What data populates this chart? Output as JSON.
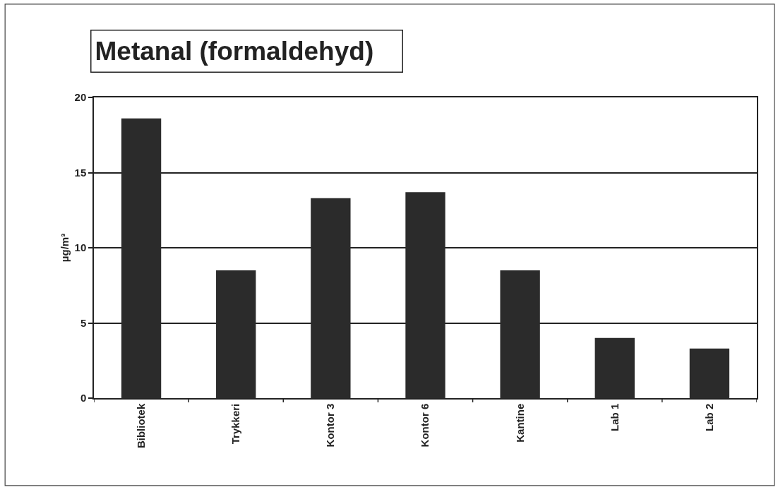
{
  "chart_data": {
    "type": "bar",
    "title": "Metanal (formaldehyd)",
    "ylabel": "µg/m³",
    "categories": [
      "Bibliotek",
      "Trykkeri",
      "Kontor 3",
      "Kontor 6",
      "Kantine",
      "Lab 1",
      "Lab 2"
    ],
    "values": [
      18.6,
      8.5,
      13.3,
      13.7,
      8.5,
      4.0,
      3.3
    ],
    "color": "#2b2b2b",
    "ylim": [
      0,
      20
    ],
    "yticks": [
      0,
      5,
      10,
      15,
      20
    ],
    "grid": "y"
  }
}
